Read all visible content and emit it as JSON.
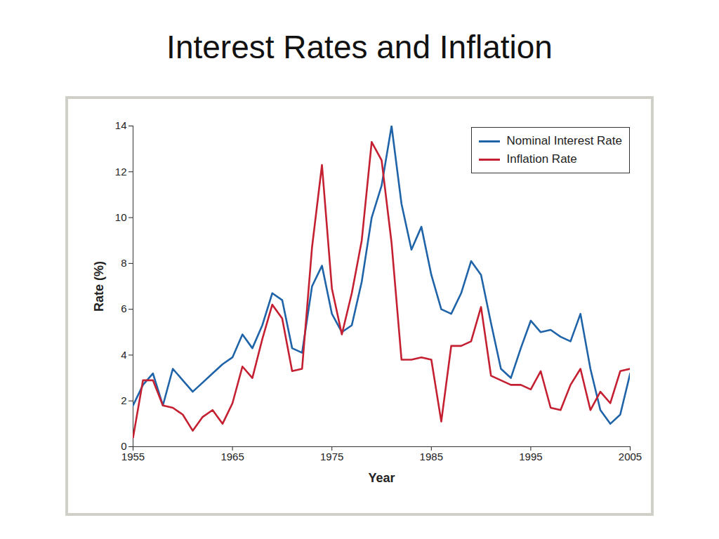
{
  "chart_data": {
    "type": "line",
    "title": "Interest Rates and Inflation",
    "x_label": "Year",
    "y_label": "Rate (%)",
    "x": [
      1955,
      1956,
      1957,
      1958,
      1959,
      1960,
      1961,
      1962,
      1963,
      1964,
      1965,
      1966,
      1967,
      1968,
      1969,
      1970,
      1971,
      1972,
      1973,
      1974,
      1975,
      1976,
      1977,
      1978,
      1979,
      1980,
      1981,
      1982,
      1983,
      1984,
      1985,
      1986,
      1987,
      1988,
      1989,
      1990,
      1991,
      1992,
      1993,
      1994,
      1995,
      1996,
      1997,
      1998,
      1999,
      2000,
      2001,
      2002,
      2003,
      2004,
      2005
    ],
    "series": [
      {
        "name": "Nominal Interest Rate",
        "color": "#1f63a8",
        "values": [
          1.8,
          2.7,
          3.2,
          1.8,
          3.4,
          2.9,
          2.4,
          2.8,
          3.2,
          3.6,
          3.9,
          4.9,
          4.3,
          5.3,
          6.7,
          6.4,
          4.3,
          4.1,
          7.0,
          7.9,
          5.8,
          5.0,
          5.3,
          7.2,
          10.0,
          11.4,
          14.0,
          10.6,
          8.6,
          9.6,
          7.5,
          6.0,
          5.8,
          6.7,
          8.1,
          7.5,
          5.4,
          3.4,
          3.0,
          4.3,
          5.5,
          5.0,
          5.1,
          4.8,
          4.6,
          5.8,
          3.4,
          1.6,
          1.0,
          1.4,
          3.2
        ]
      },
      {
        "name": "Inflation Rate",
        "color": "#c42032",
        "values": [
          0.4,
          2.9,
          2.9,
          1.8,
          1.7,
          1.4,
          0.7,
          1.3,
          1.6,
          1.0,
          1.9,
          3.5,
          3.0,
          4.7,
          6.2,
          5.6,
          3.3,
          3.4,
          8.7,
          12.3,
          6.9,
          4.9,
          6.7,
          9.0,
          13.3,
          12.5,
          8.9,
          3.8,
          3.8,
          3.9,
          3.8,
          1.1,
          4.4,
          4.4,
          4.6,
          6.1,
          3.1,
          2.9,
          2.7,
          2.7,
          2.5,
          3.3,
          1.7,
          1.6,
          2.7,
          3.4,
          1.6,
          2.4,
          1.9,
          3.3,
          3.4
        ]
      }
    ],
    "xlim": [
      1955,
      2005
    ],
    "xticks": [
      1955,
      1965,
      1975,
      1985,
      1995,
      2005
    ],
    "ylim": [
      0,
      14
    ],
    "yticks": [
      0,
      2,
      4,
      6,
      8,
      10,
      12,
      14
    ],
    "grid": false,
    "legend": "top-right"
  }
}
